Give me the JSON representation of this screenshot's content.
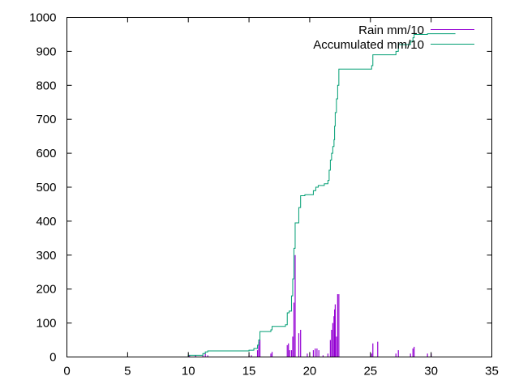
{
  "chart_data": {
    "type": "line",
    "title": "",
    "xlabel": "",
    "ylabel": "",
    "xlim": [
      0,
      35
    ],
    "ylim": [
      0,
      1000
    ],
    "x_ticks": [
      "0",
      "5",
      "10",
      "15",
      "20",
      "25",
      "30",
      "35"
    ],
    "y_ticks": [
      "0",
      "100",
      "200",
      "300",
      "400",
      "500",
      "600",
      "700",
      "800",
      "900",
      "1000"
    ],
    "grid": false,
    "legend_position": "top-right",
    "series": [
      {
        "name": "Rain mm/10",
        "color": "#9400d3",
        "style": "impulses",
        "points": [
          [
            10.1,
            5
          ],
          [
            10.6,
            5
          ],
          [
            11.2,
            5
          ],
          [
            11.4,
            10
          ],
          [
            11.6,
            5
          ],
          [
            15.0,
            5
          ],
          [
            15.2,
            5
          ],
          [
            15.7,
            20
          ],
          [
            15.8,
            45
          ],
          [
            15.9,
            50
          ],
          [
            16.8,
            10
          ],
          [
            16.9,
            15
          ],
          [
            18.15,
            35
          ],
          [
            18.25,
            40
          ],
          [
            18.35,
            20
          ],
          [
            18.5,
            20
          ],
          [
            18.6,
            60
          ],
          [
            18.7,
            160
          ],
          [
            18.8,
            300
          ],
          [
            19.1,
            70
          ],
          [
            19.25,
            80
          ],
          [
            19.8,
            10
          ],
          [
            20.3,
            20
          ],
          [
            20.45,
            25
          ],
          [
            20.6,
            25
          ],
          [
            20.75,
            20
          ],
          [
            21.1,
            5
          ],
          [
            21.5,
            10
          ],
          [
            21.7,
            50
          ],
          [
            21.8,
            80
          ],
          [
            21.9,
            100
          ],
          [
            22.0,
            120
          ],
          [
            22.05,
            140
          ],
          [
            22.1,
            155
          ],
          [
            22.2,
            60
          ],
          [
            22.3,
            185
          ],
          [
            22.4,
            185
          ],
          [
            25.1,
            10
          ],
          [
            25.2,
            40
          ],
          [
            25.6,
            45
          ],
          [
            27.1,
            10
          ],
          [
            27.3,
            20
          ],
          [
            28.3,
            10
          ],
          [
            28.5,
            25
          ],
          [
            28.6,
            30
          ],
          [
            29.7,
            10
          ],
          [
            30.0,
            10
          ]
        ]
      },
      {
        "name": "Accumulated mm/10",
        "color": "#009e73",
        "style": "steps",
        "points": [
          [
            6.5,
            0
          ],
          [
            9.9,
            0
          ],
          [
            10.0,
            5
          ],
          [
            11.0,
            5
          ],
          [
            11.2,
            10
          ],
          [
            11.4,
            15
          ],
          [
            11.6,
            18
          ],
          [
            15.0,
            20
          ],
          [
            15.4,
            25
          ],
          [
            15.7,
            35
          ],
          [
            15.8,
            50
          ],
          [
            15.9,
            75
          ],
          [
            16.8,
            80
          ],
          [
            16.9,
            90
          ],
          [
            18.0,
            95
          ],
          [
            18.15,
            130
          ],
          [
            18.3,
            135
          ],
          [
            18.5,
            180
          ],
          [
            18.6,
            230
          ],
          [
            18.7,
            320
          ],
          [
            18.8,
            395
          ],
          [
            19.1,
            440
          ],
          [
            19.25,
            475
          ],
          [
            19.6,
            478
          ],
          [
            20.3,
            490
          ],
          [
            20.5,
            500
          ],
          [
            20.7,
            505
          ],
          [
            21.2,
            510
          ],
          [
            21.5,
            520
          ],
          [
            21.6,
            550
          ],
          [
            21.7,
            580
          ],
          [
            21.8,
            600
          ],
          [
            21.9,
            620
          ],
          [
            22.0,
            640
          ],
          [
            22.05,
            680
          ],
          [
            22.1,
            720
          ],
          [
            22.2,
            760
          ],
          [
            22.3,
            800
          ],
          [
            22.4,
            848
          ],
          [
            25.1,
            858
          ],
          [
            25.2,
            890
          ],
          [
            27.1,
            900
          ],
          [
            27.3,
            920
          ],
          [
            28.3,
            930
          ],
          [
            28.5,
            940
          ],
          [
            28.6,
            950
          ],
          [
            29.7,
            952
          ],
          [
            30.0,
            952
          ],
          [
            32.0,
            952
          ]
        ]
      }
    ]
  }
}
